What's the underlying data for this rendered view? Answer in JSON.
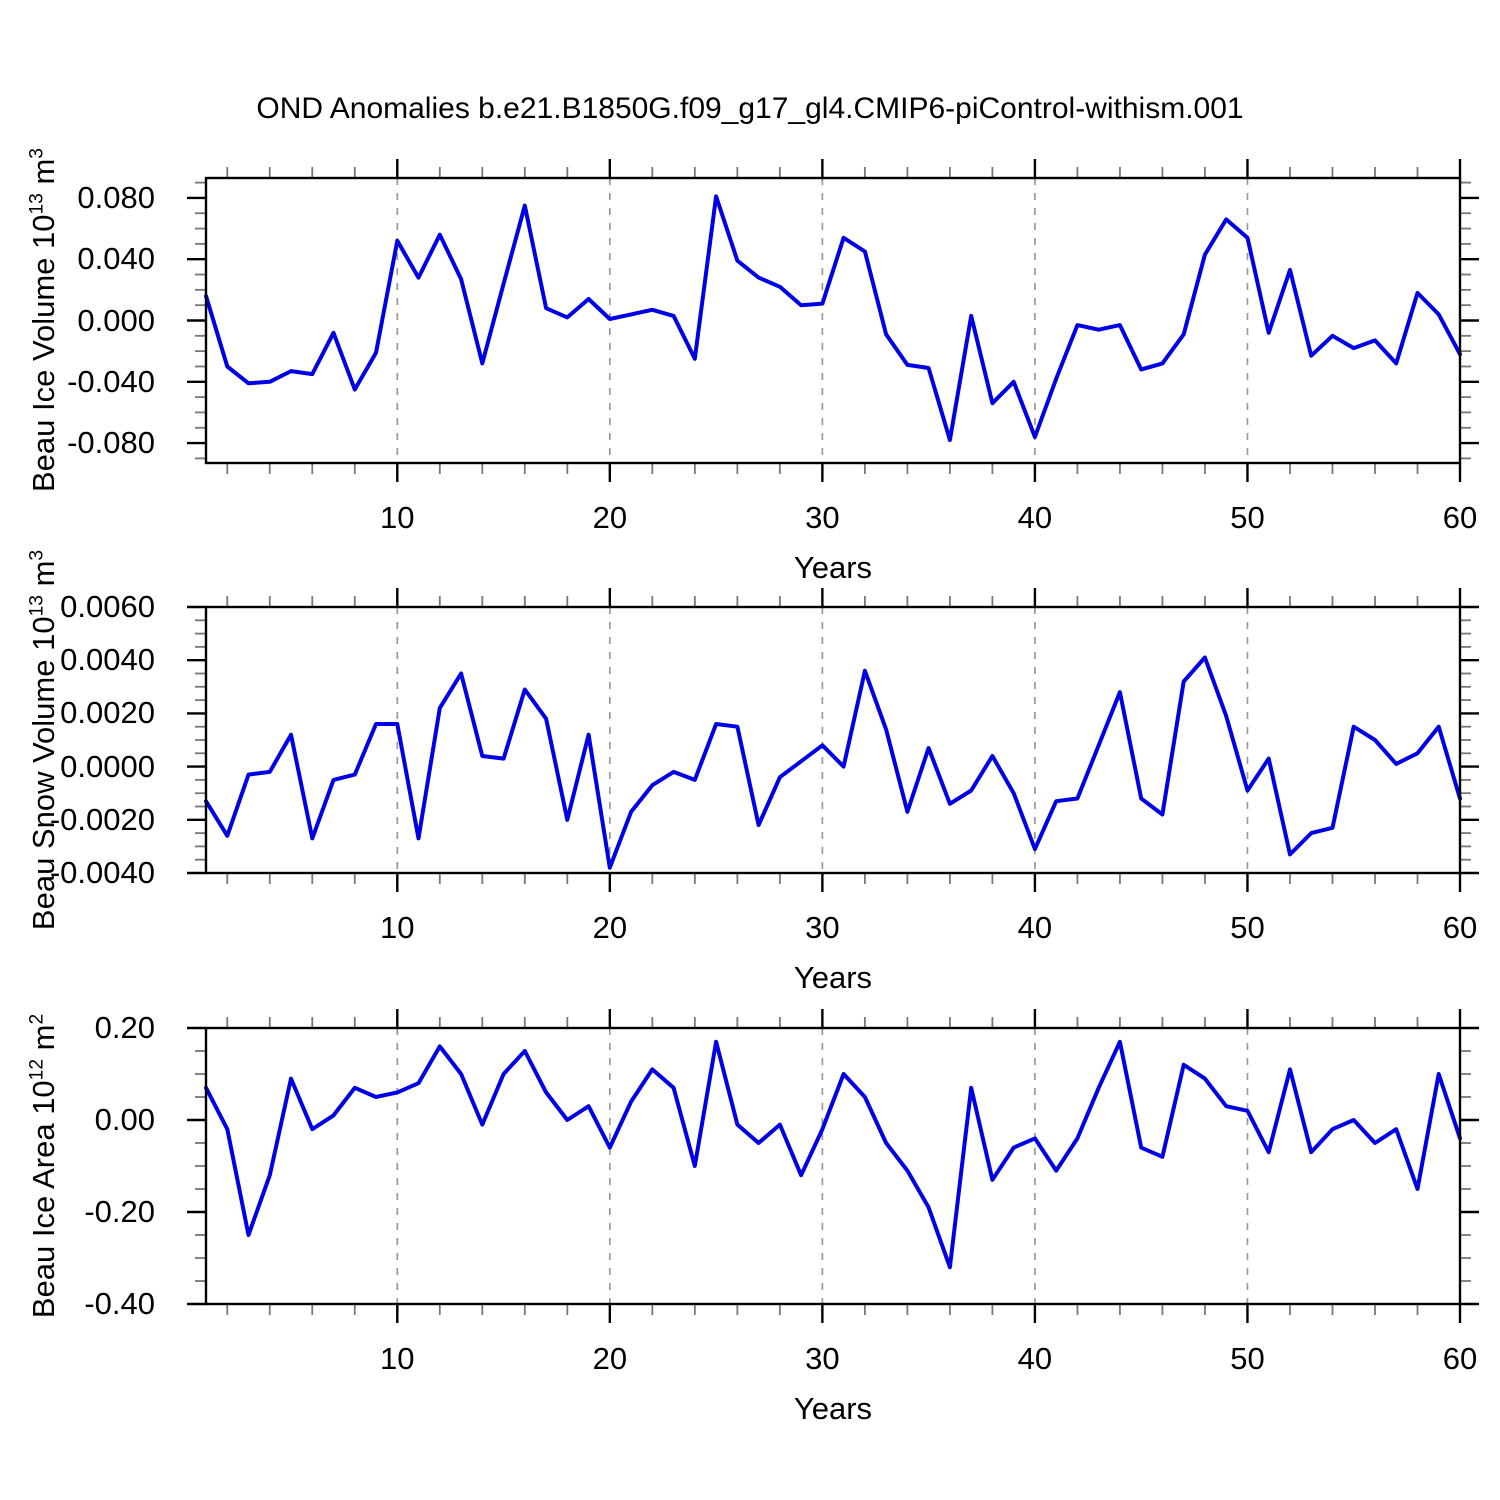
{
  "title": "OND Anomalies b.e21.B1850G.f09_g17_gl4.CMIP6-piControl-withism.001",
  "colors": {
    "line": "#0000e6",
    "frame": "#000000",
    "major_tick": "#000000",
    "minor_tick": "#777777",
    "grid": "#999999",
    "text": "#000000",
    "background": "#ffffff"
  },
  "chart_data": [
    {
      "type": "line",
      "name": "beau-ice-volume",
      "ylabel": "Beau Ice Volume 10^13 m^3",
      "ylabel_base": "Beau Ice Volume 10",
      "ylabel_exp": "13",
      "ylabel_unit": " m",
      "ylabel_unit_exp": "3",
      "xlabel": "Years",
      "x_start": 1,
      "x_end": 60,
      "xticks": [
        10,
        20,
        30,
        40,
        50,
        60
      ],
      "xtick_labels": [
        "10",
        "20",
        "30",
        "40",
        "50",
        "60"
      ],
      "xminor_step": 2,
      "grid_x": [
        10,
        20,
        30,
        40,
        50
      ],
      "ylim": [
        -0.093,
        0.093
      ],
      "ytick_values": [
        0.08,
        0.04,
        0.0,
        -0.04,
        -0.08
      ],
      "ytick_labels": [
        "0.080",
        "0.040",
        "0.000",
        "-0.040",
        "-0.080"
      ],
      "yminor_step": 0.01,
      "values": [
        0.016,
        -0.03,
        -0.041,
        -0.04,
        -0.033,
        -0.035,
        -0.008,
        -0.045,
        -0.021,
        0.052,
        0.028,
        0.056,
        0.027,
        -0.028,
        0.024,
        0.075,
        0.008,
        0.002,
        0.014,
        0.001,
        0.004,
        0.007,
        0.003,
        -0.025,
        0.081,
        0.039,
        0.028,
        0.022,
        0.01,
        0.011,
        0.054,
        0.045,
        -0.009,
        -0.029,
        -0.031,
        -0.078,
        0.003,
        -0.054,
        -0.04,
        -0.076,
        -0.038,
        -0.003,
        -0.006,
        -0.003,
        -0.032,
        -0.028,
        -0.009,
        0.043,
        0.066,
        0.054,
        -0.008,
        0.033,
        -0.023,
        -0.01,
        -0.018,
        -0.013,
        -0.028,
        0.018,
        0.004,
        -0.022
      ]
    },
    {
      "type": "line",
      "name": "beau-snow-volume",
      "ylabel": "Beau Snow Volume 10^13 m^3",
      "ylabel_base": "Beau Snow Volume 10",
      "ylabel_exp": "13",
      "ylabel_unit": " m",
      "ylabel_unit_exp": "3",
      "xlabel": "Years",
      "x_start": 1,
      "x_end": 60,
      "xticks": [
        10,
        20,
        30,
        40,
        50,
        60
      ],
      "xtick_labels": [
        "10",
        "20",
        "30",
        "40",
        "50",
        "60"
      ],
      "xminor_step": 2,
      "grid_x": [
        10,
        20,
        30,
        40,
        50
      ],
      "ylim": [
        -0.004,
        0.006
      ],
      "ytick_values": [
        0.006,
        0.004,
        0.002,
        0.0,
        -0.002,
        -0.004
      ],
      "ytick_labels": [
        "0.0060",
        "0.0040",
        "0.0020",
        "0.0000",
        "-0.0020",
        "-0.0040"
      ],
      "yminor_step": 0.0005,
      "values": [
        -0.0013,
        -0.0026,
        -0.0003,
        -0.0002,
        0.0012,
        -0.0027,
        -0.0005,
        -0.0003,
        0.0016,
        0.0016,
        -0.0027,
        0.0022,
        0.0035,
        0.0004,
        0.0003,
        0.0029,
        0.0018,
        -0.002,
        0.0012,
        -0.0038,
        -0.0017,
        -0.0007,
        -0.0002,
        -0.0005,
        0.0016,
        0.0015,
        -0.0022,
        -0.0004,
        0.0002,
        0.0008,
        0.0,
        0.0036,
        0.0014,
        -0.0017,
        0.0007,
        -0.0014,
        -0.0009,
        0.0004,
        -0.001,
        -0.0031,
        -0.0013,
        -0.0012,
        0.0008,
        0.0028,
        -0.0012,
        -0.0018,
        0.0032,
        0.0041,
        0.0019,
        -0.0009,
        0.0003,
        -0.0033,
        -0.0025,
        -0.0023,
        0.0015,
        0.001,
        0.0001,
        0.0005,
        0.0015,
        -0.0012
      ]
    },
    {
      "type": "line",
      "name": "beau-ice-area",
      "ylabel": "Beau Ice Area 10^12 m^2",
      "ylabel_base": "Beau Ice Area 10",
      "ylabel_exp": "12",
      "ylabel_unit": " m",
      "ylabel_unit_exp": "2",
      "xlabel": "Years",
      "x_start": 1,
      "x_end": 60,
      "xticks": [
        10,
        20,
        30,
        40,
        50,
        60
      ],
      "xtick_labels": [
        "10",
        "20",
        "30",
        "40",
        "50",
        "60"
      ],
      "xminor_step": 2,
      "grid_x": [
        10,
        20,
        30,
        40,
        50
      ],
      "ylim": [
        -0.4,
        0.2
      ],
      "ytick_values": [
        0.2,
        0.0,
        -0.2,
        -0.4
      ],
      "ytick_labels": [
        "0.20",
        "0.00",
        "-0.20",
        "-0.40"
      ],
      "yminor_step": 0.05,
      "values": [
        0.07,
        -0.02,
        -0.25,
        -0.12,
        0.09,
        -0.02,
        0.01,
        0.07,
        0.05,
        0.06,
        0.08,
        0.16,
        0.1,
        -0.01,
        0.1,
        0.15,
        0.06,
        0.0,
        0.03,
        -0.06,
        0.04,
        0.11,
        0.07,
        -0.1,
        0.17,
        -0.01,
        -0.05,
        -0.01,
        -0.12,
        -0.02,
        0.1,
        0.05,
        -0.05,
        -0.11,
        -0.19,
        -0.32,
        0.07,
        -0.13,
        -0.06,
        -0.04,
        -0.11,
        -0.04,
        0.07,
        0.17,
        -0.06,
        -0.08,
        0.12,
        0.09,
        0.03,
        0.02,
        -0.07,
        0.11,
        -0.07,
        -0.02,
        0.0,
        -0.05,
        -0.02,
        -0.15,
        0.1,
        -0.04
      ]
    }
  ]
}
